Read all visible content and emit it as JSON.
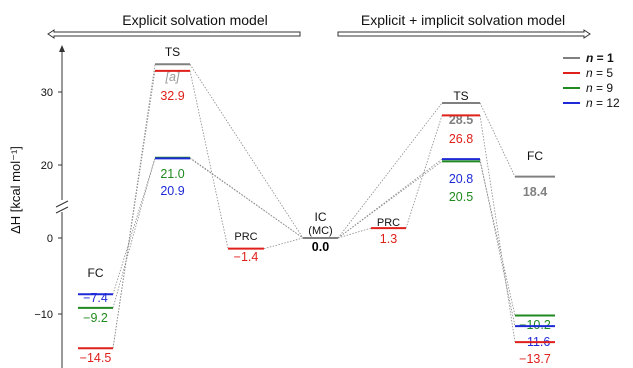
{
  "chart_data": {
    "type": "energy-diagram",
    "ylabel": "ΔH [kcal mol⁻¹]",
    "ylim": [
      -18,
      36
    ],
    "yticks": [
      -10,
      0,
      20,
      30
    ],
    "axis_break": true,
    "sections": [
      "Explicit solvation model",
      "Explicit + implicit solvation model"
    ],
    "legend": [
      {
        "label": "n = 1",
        "color": "#808080",
        "bold": true
      },
      {
        "label": "n = 5",
        "color": "#e0201b"
      },
      {
        "label": "n = 9",
        "color": "#1f8a1f"
      },
      {
        "label": "n = 12",
        "color": "#1e2ad6"
      }
    ],
    "states": [
      {
        "name": "FC",
        "side": "left",
        "levels": [
          {
            "series": "n = 12",
            "value": -7.4,
            "label": "−7.4"
          },
          {
            "series": "n = 9",
            "value": -9.2,
            "label": "−9.2"
          },
          {
            "series": "n = 5",
            "value": -14.5,
            "label": "−14.5"
          }
        ]
      },
      {
        "name": "TS",
        "side": "left",
        "levels": [
          {
            "series": "n = 1",
            "value": 33.8,
            "label": "[a]"
          },
          {
            "series": "n = 5",
            "value": 32.9,
            "label": "32.9"
          },
          {
            "series": "n = 9",
            "value": 21.0,
            "label": "21.0"
          },
          {
            "series": "n = 12",
            "value": 20.9,
            "label": "20.9"
          }
        ]
      },
      {
        "name": "PRC",
        "side": "left",
        "levels": [
          {
            "series": "n = 5",
            "value": -1.4,
            "label": "−1.4"
          }
        ]
      },
      {
        "name": "IC (MC)",
        "side": "center",
        "levels": [
          {
            "series": "n = 1",
            "value": 0.0,
            "label": "0.0"
          }
        ]
      },
      {
        "name": "PRC",
        "side": "right",
        "levels": [
          {
            "series": "n = 5",
            "value": 1.3,
            "label": "1.3"
          }
        ]
      },
      {
        "name": "TS",
        "side": "right",
        "levels": [
          {
            "series": "n = 1",
            "value": 28.5,
            "label": "28.5"
          },
          {
            "series": "n = 5",
            "value": 26.8,
            "label": "26.8"
          },
          {
            "series": "n = 12",
            "value": 20.8,
            "label": "20.8"
          },
          {
            "series": "n = 9",
            "value": 20.5,
            "label": "20.5"
          }
        ]
      },
      {
        "name": "FC",
        "side": "right",
        "levels": [
          {
            "series": "n = 1",
            "value": 18.4,
            "label": "18.4"
          },
          {
            "series": "n = 9",
            "value": -10.2,
            "label": "−10.2"
          },
          {
            "series": "n = 12",
            "value": -11.6,
            "label": "−11.6"
          },
          {
            "series": "n = 5",
            "value": -13.7,
            "label": "−13.7"
          }
        ]
      }
    ]
  }
}
